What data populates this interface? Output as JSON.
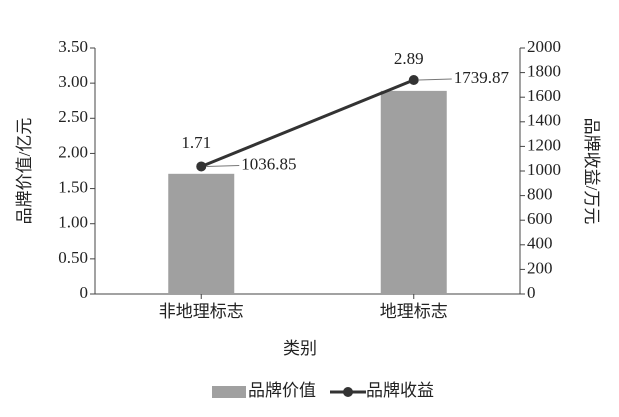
{
  "chart_data": {
    "type": "bar",
    "xlabel": "类别",
    "ylabel": "品牌价值/亿元",
    "y2label": "品牌收益/万元",
    "categories": [
      "非地理标志",
      "地理标志"
    ],
    "series": [
      {
        "name": "品牌价值",
        "type": "bar",
        "color": "#a0a0a0",
        "values": [
          1.71,
          2.89
        ]
      },
      {
        "name": "品牌收益",
        "type": "line",
        "axis": "y2",
        "color": "#333333",
        "values": [
          1036.85,
          1739.87
        ]
      }
    ],
    "ylim": [
      0,
      3.5
    ],
    "yticks": [
      0,
      {
        "value": 0.5,
        "label": "0.50"
      },
      {
        "value": 1,
        "label": "1.00"
      },
      {
        "value": 1.5,
        "label": "1.50"
      },
      {
        "value": 2,
        "label": "2.00"
      },
      {
        "value": 2.5,
        "label": "2.50"
      },
      {
        "value": 3,
        "label": "3.00"
      },
      {
        "value": 3.5,
        "label": "3.50"
      }
    ],
    "y2lim": [
      0,
      2000
    ],
    "y2ticks": [
      0,
      200,
      400,
      600,
      800,
      1000,
      1200,
      1400,
      1600,
      1800,
      2000
    ],
    "grid": false,
    "legend": "bottom"
  }
}
